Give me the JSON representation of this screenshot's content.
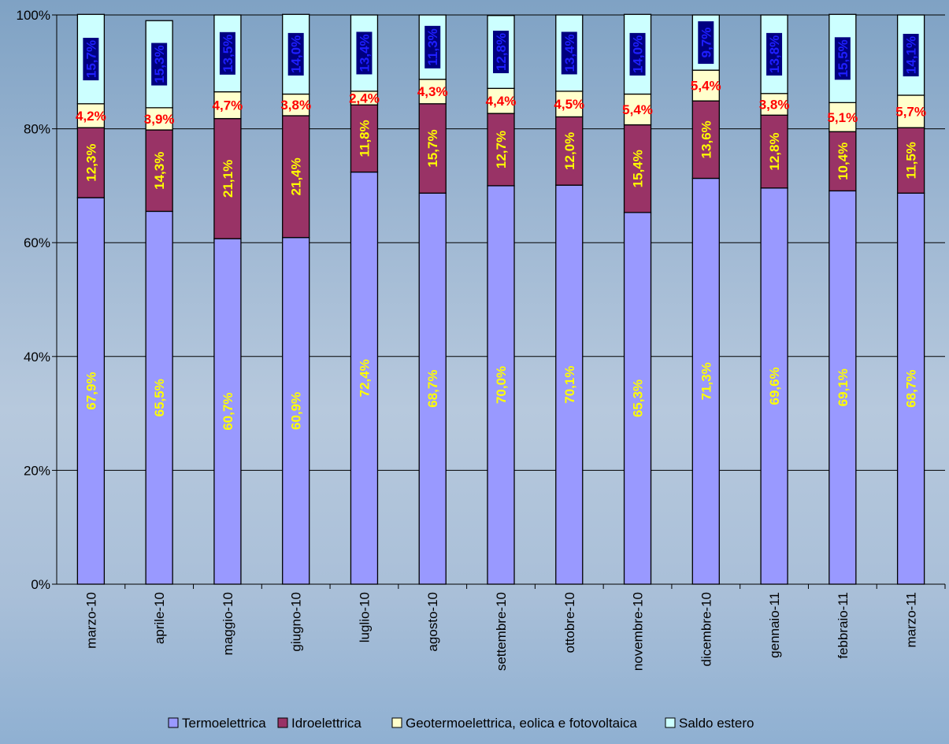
{
  "chart_data": {
    "type": "bar",
    "stacked": true,
    "categories": [
      "marzo-10",
      "aprile-10",
      "maggio-10",
      "giugno-10",
      "luglio-10",
      "agosto-10",
      "settembre-10",
      "ottobre-10",
      "novembre-10",
      "dicembre-10",
      "gennaio-11",
      "febbraio-11",
      "marzo-11"
    ],
    "series": [
      {
        "name": "Termoelettrica",
        "color": "#9999ff",
        "values": [
          67.9,
          65.5,
          60.7,
          60.9,
          72.4,
          68.7,
          70.0,
          70.1,
          65.3,
          71.3,
          69.6,
          69.1,
          68.7
        ],
        "labels": [
          "67,9%",
          "65,5%",
          "60,7%",
          "60,9%",
          "72,4%",
          "68,7%",
          "70,0%",
          "70,1%",
          "65,3%",
          "71,3%",
          "69,6%",
          "69,1%",
          "68,7%"
        ]
      },
      {
        "name": "Idroelettrica",
        "color": "#993366",
        "values": [
          12.3,
          14.3,
          21.1,
          21.4,
          11.8,
          15.7,
          12.7,
          12.0,
          15.4,
          13.6,
          12.8,
          10.4,
          11.5
        ],
        "labels": [
          "12,3%",
          "14,3%",
          "21,1%",
          "21,4%",
          "11,8%",
          "15,7%",
          "12,7%",
          "12,0%",
          "15,4%",
          "13,6%",
          "12,8%",
          "10,4%",
          "11,5%"
        ]
      },
      {
        "name": "Geotermoelettrica, eolica e fotovoltaica",
        "color": "#ffffcc",
        "values": [
          4.2,
          3.9,
          4.7,
          3.8,
          2.4,
          4.3,
          4.4,
          4.5,
          5.4,
          5.4,
          3.8,
          5.1,
          5.7
        ],
        "labels": [
          "4,2%",
          "3,9%",
          "4,7%",
          "3,8%",
          "2,4%",
          "4,3%",
          "4,4%",
          "4,5%",
          "5,4%",
          "5,4%",
          "3,8%",
          "5,1%",
          "5,7%"
        ]
      },
      {
        "name": "Saldo estero",
        "color": "#ccffff",
        "values": [
          15.7,
          15.3,
          13.5,
          14.0,
          13.4,
          11.3,
          12.8,
          13.4,
          14.0,
          9.7,
          13.8,
          15.5,
          14.1
        ],
        "labels": [
          "15,7%",
          "15,3%",
          "13,5%",
          "14,0%",
          "13,4%",
          "11,3%",
          "12,8%",
          "13,4%",
          "14,0%",
          "9,7%",
          "13,8%",
          "15,5%",
          "14,1%"
        ]
      }
    ],
    "yticks": [
      "0%",
      "20%",
      "40%",
      "60%",
      "80%",
      "100%"
    ],
    "ylim": [
      0,
      100
    ],
    "grid": true,
    "legend": "bottom",
    "label_colors": {
      "Termoelettrica": "#ffff00",
      "Idroelettrica": "#ffff00",
      "Geotermoelettrica, eolica e fotovoltaica": "#ff0000",
      "Saldo estero": "#1f1fff"
    }
  }
}
